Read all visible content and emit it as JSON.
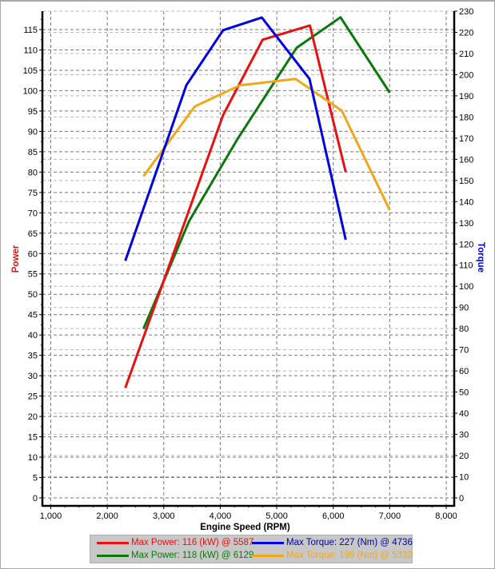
{
  "chart_data": {
    "type": "line",
    "xlabel": "Engine Speed (RPM)",
    "ylabel_left": "Power",
    "ylabel_right": "Torque",
    "xlim": [
      1000,
      8000
    ],
    "x_ticks": [
      "1,000",
      "2,000",
      "3,000",
      "4,000",
      "5,000",
      "6,000",
      "7,000",
      "8,000"
    ],
    "ylim_left": [
      0,
      115
    ],
    "ylim_right": [
      0,
      230
    ],
    "left_ticks": [
      0,
      5,
      10,
      15,
      20,
      25,
      30,
      35,
      40,
      45,
      50,
      55,
      60,
      65,
      70,
      75,
      80,
      85,
      90,
      95,
      100,
      105,
      110,
      115
    ],
    "right_ticks": [
      0,
      10,
      20,
      30,
      40,
      50,
      60,
      70,
      80,
      90,
      100,
      110,
      120,
      130,
      140,
      150,
      160,
      170,
      180,
      190,
      200,
      210,
      220,
      230
    ],
    "grid": true,
    "legend_position": "bottom",
    "series": [
      {
        "name": "Max Power: 116 (kW) @ 5587",
        "axis": "left",
        "color": "#e81010",
        "x": [
          2320,
          4050,
          4750,
          5587,
          6220
        ],
        "y": [
          27,
          94,
          112.5,
          116,
          80
        ]
      },
      {
        "name": "Max Torque: 227 (Nm) @ 4736",
        "axis": "right",
        "color": "#0000e0",
        "x": [
          2320,
          3400,
          4050,
          4736,
          5580,
          6220
        ],
        "y": [
          112,
          195,
          221,
          227,
          198,
          122
        ]
      },
      {
        "name": "Max Power: 118 (kW) @ 6129",
        "axis": "left",
        "color": "#0a780a",
        "x": [
          2640,
          3450,
          4300,
          5350,
          6129,
          7000
        ],
        "y": [
          41.5,
          68,
          88,
          110.5,
          118,
          99.5
        ]
      },
      {
        "name": "Max Torque: 198 (Nm) @ 5332",
        "axis": "right",
        "color": "#f0a818",
        "x": [
          2640,
          3550,
          4350,
          5332,
          6150,
          7000
        ],
        "y": [
          152,
          185,
          195,
          198,
          183,
          136
        ]
      }
    ]
  }
}
